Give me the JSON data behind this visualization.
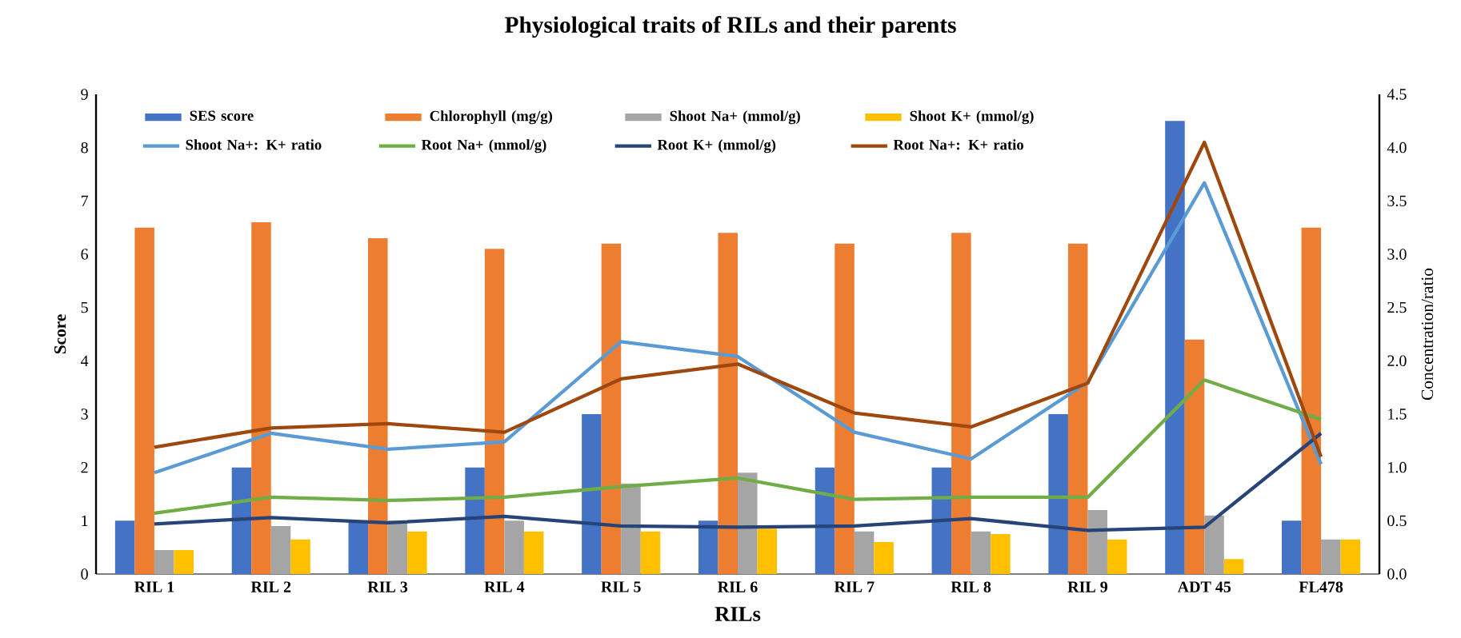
{
  "chart_data": {
    "type": "bar",
    "title": "Physiological traits of RILs and their parents",
    "xlabel": "RILs",
    "ylabel": "Score",
    "y2label": "Concentration/ratio",
    "categories": [
      "RIL 1",
      "RIL 2",
      "RIL 3",
      "RIL 4",
      "RIL 5",
      "RIL 6",
      "RIL 7",
      "RIL 8",
      "RIL 9",
      "ADT 45",
      "FL478"
    ],
    "ylim": [
      0,
      9
    ],
    "yticks": [
      0,
      1,
      2,
      3,
      4,
      5,
      6,
      7,
      8,
      9
    ],
    "y2lim": [
      0,
      4.5
    ],
    "y2ticks": [
      {
        "value": 0,
        "label": "0.0"
      },
      {
        "value": 0.5,
        "label": "0.5"
      },
      {
        "value": 1,
        "label": "1.0"
      },
      {
        "value": 1.5,
        "label": "1.5"
      },
      {
        "value": 2,
        "label": "2.0"
      },
      {
        "value": 2.5,
        "label": "2.5"
      },
      {
        "value": 3,
        "label": "3.0"
      },
      {
        "value": 3.5,
        "label": "3.5"
      },
      {
        "value": 4,
        "label": "4.0"
      },
      {
        "value": 4.5,
        "label": "4.5"
      }
    ],
    "legend": "top left",
    "series": [
      {
        "name": "SES score",
        "color": "#4472c4",
        "values": [
          1,
          2,
          1,
          2,
          3,
          1,
          2,
          2,
          3,
          8.5,
          1
        ]
      },
      {
        "name": "Chlorophyll (mg/g)",
        "color": "#ed7d31",
        "values": [
          6.5,
          6.6,
          6.3,
          6.1,
          6.2,
          6.4,
          6.2,
          6.4,
          6.2,
          4.4,
          6.5
        ]
      },
      {
        "name": "Shoot Na+ (mmol/g)",
        "color": "#a5a5a5",
        "values": [
          0.45,
          0.9,
          1.0,
          1.0,
          1.7,
          1.9,
          0.8,
          0.8,
          1.2,
          1.1,
          0.65
        ]
      },
      {
        "name": "Shoot K+ (mmol/g)",
        "color": "#ffc000",
        "values": [
          0.45,
          0.65,
          0.8,
          0.8,
          0.8,
          0.85,
          0.6,
          0.75,
          0.65,
          0.28,
          0.65
        ]
      },
      {
        "name": "Shoot Na+: K+ ratio",
        "type": "line",
        "axis": "y2",
        "color": "#5b9bd5",
        "values": [
          0.95,
          1.32,
          1.17,
          1.24,
          2.18,
          2.04,
          1.33,
          1.08,
          1.8,
          3.67,
          1.03
        ]
      },
      {
        "name": "Root Na+ (mmol/g)",
        "type": "line",
        "axis": "y2",
        "color": "#70ad47",
        "values": [
          0.57,
          0.72,
          0.69,
          0.72,
          0.82,
          0.9,
          0.7,
          0.72,
          0.72,
          1.82,
          1.45
        ]
      },
      {
        "name": "Root K+ (mmol/g)",
        "type": "line",
        "axis": "y2",
        "color": "#264478",
        "values": [
          0.47,
          0.53,
          0.48,
          0.54,
          0.45,
          0.44,
          0.45,
          0.52,
          0.41,
          0.44,
          1.32
        ]
      },
      {
        "name": "Root Na+: K+ ratio",
        "type": "line",
        "axis": "y2",
        "color": "#9e480e",
        "values": [
          1.19,
          1.37,
          1.41,
          1.33,
          1.83,
          1.97,
          1.51,
          1.38,
          1.79,
          4.05,
          1.1
        ]
      }
    ]
  }
}
